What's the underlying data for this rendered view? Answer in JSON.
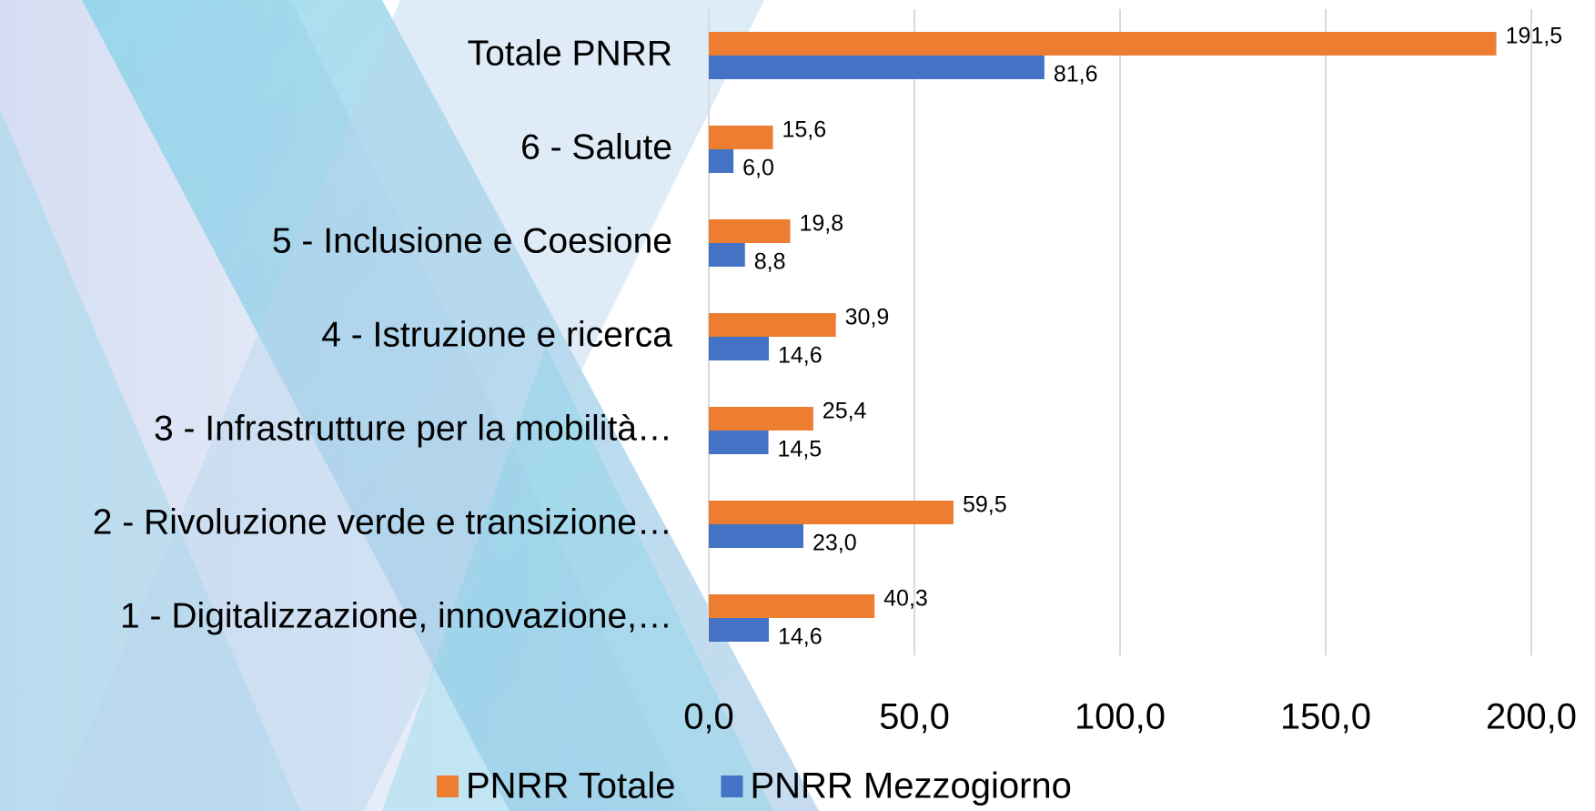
{
  "chart_data": {
    "type": "bar",
    "orientation": "horizontal",
    "categories": [
      "Totale PNRR",
      "6 - Salute",
      "5 - Inclusione e Coesione",
      "4 - Istruzione e ricerca",
      "3 - Infrastrutture per la mobilità…",
      "2 - Rivoluzione verde e transizione…",
      "1 - Digitalizzazione, innovazione,…"
    ],
    "series": [
      {
        "name": "PNRR Totale",
        "color": "#ed7d31",
        "values": [
          191.5,
          15.6,
          19.8,
          30.9,
          25.4,
          59.5,
          40.3
        ],
        "value_labels": [
          "191,5",
          "15,6",
          "19,8",
          "30,9",
          "25,4",
          "59,5",
          "40,3"
        ]
      },
      {
        "name": "PNRR Mezzogiorno",
        "color": "#4472c4",
        "values": [
          81.6,
          6.0,
          8.8,
          14.6,
          14.5,
          23.0,
          14.6
        ],
        "value_labels": [
          "81,6",
          "6,0",
          "8,8",
          "14,6",
          "14,5",
          "23,0",
          "14,6"
        ]
      }
    ],
    "xlim": [
      0,
      200
    ],
    "xticks": [
      {
        "value": 0,
        "label": "0,0"
      },
      {
        "value": 50,
        "label": "50,0"
      },
      {
        "value": 100,
        "label": "100,0"
      },
      {
        "value": 150,
        "label": "150,0"
      },
      {
        "value": 200,
        "label": "200,0"
      }
    ],
    "grid": true,
    "legend": "bottom"
  }
}
